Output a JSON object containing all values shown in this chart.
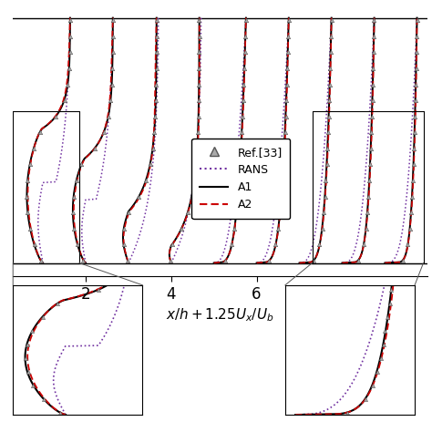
{
  "xlabel": "$x/h+1.25U_x/U_b$",
  "n_locations": 9,
  "x_positions": [
    1,
    2,
    3,
    4,
    5,
    6,
    7,
    8,
    9
  ],
  "x_tick_positions": [
    2,
    4,
    6
  ],
  "x_tick_labels": [
    "2",
    "4",
    "6"
  ],
  "x_range": [
    0.3,
    10.0
  ],
  "y_range": [
    0.0,
    1.0
  ],
  "colors": {
    "RANS": "#7030a0",
    "A1": "#000000",
    "A2": "#cc0000",
    "ref": "#808080"
  },
  "background": "#ffffff",
  "profile_scale": 0.75
}
